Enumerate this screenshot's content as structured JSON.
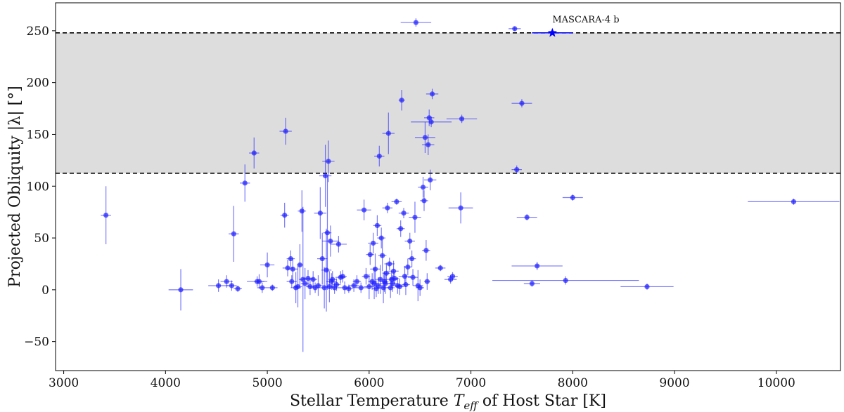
{
  "chart_data": {
    "type": "scatter",
    "xlabel_parts": [
      "Stellar Temperature ",
      "T",
      "eff",
      " of Host Star [K]"
    ],
    "ylabel": "Projected Obliquity |λ| [°]",
    "xlim": [
      2920,
      10630
    ],
    "ylim": [
      -78,
      277
    ],
    "xticks": [
      3000,
      4000,
      5000,
      6000,
      7000,
      8000,
      9000,
      10000
    ],
    "yticks": [
      -50,
      0,
      50,
      100,
      150,
      200,
      250
    ],
    "ytick_labels": [
      "−50",
      "0",
      "50",
      "100",
      "150",
      "200",
      "250"
    ],
    "shaded_band": [
      112.5,
      248
    ],
    "reference_lines": [
      112.5,
      248
    ],
    "colors": {
      "points": "#1f1fff",
      "band": "#dddddd",
      "star": "#0000ff",
      "lines": "#000000"
    },
    "highlight": {
      "label": "MASCARA-4 b",
      "x": 7800,
      "y": 248,
      "xerr": 200,
      "marker": "star"
    },
    "points": [
      [
        3415,
        72,
        50,
        28
      ],
      [
        4150,
        0,
        120,
        20
      ],
      [
        4520,
        4,
        100,
        6
      ],
      [
        4600,
        8,
        60,
        6
      ],
      [
        4650,
        4,
        50,
        5
      ],
      [
        4670,
        54,
        50,
        27
      ],
      [
        4710,
        1,
        40,
        3
      ],
      [
        4780,
        103,
        50,
        18
      ],
      [
        4870,
        132,
        50,
        15
      ],
      [
        4900,
        8,
        100,
        5
      ],
      [
        4920,
        8,
        50,
        7
      ],
      [
        4950,
        2,
        50,
        5
      ],
      [
        5000,
        24,
        70,
        12
      ],
      [
        5050,
        2,
        50,
        3
      ],
      [
        5170,
        72,
        40,
        12
      ],
      [
        5180,
        153,
        60,
        13
      ],
      [
        5200,
        21,
        50,
        8
      ],
      [
        5230,
        30,
        40,
        8
      ],
      [
        5240,
        8,
        50,
        6
      ],
      [
        5250,
        20,
        50,
        10
      ],
      [
        5280,
        2,
        50,
        15
      ],
      [
        5300,
        3,
        40,
        20
      ],
      [
        5320,
        24,
        30,
        20
      ],
      [
        5340,
        76,
        40,
        20
      ],
      [
        5350,
        10,
        40,
        70
      ],
      [
        5370,
        6,
        40,
        15
      ],
      [
        5400,
        11,
        50,
        8
      ],
      [
        5420,
        3,
        40,
        8
      ],
      [
        5450,
        10,
        40,
        8
      ],
      [
        5470,
        2,
        50,
        5
      ],
      [
        5500,
        4,
        50,
        10
      ],
      [
        5520,
        74,
        60,
        25
      ],
      [
        5540,
        30,
        50,
        25
      ],
      [
        5560,
        2,
        40,
        20
      ],
      [
        5570,
        110,
        60,
        30
      ],
      [
        5580,
        19,
        50,
        40
      ],
      [
        5590,
        55,
        40,
        55
      ],
      [
        5600,
        124,
        60,
        20
      ],
      [
        5610,
        3,
        40,
        15
      ],
      [
        5620,
        47,
        80,
        15
      ],
      [
        5630,
        8,
        50,
        8
      ],
      [
        5640,
        10,
        40,
        8
      ],
      [
        5660,
        2,
        50,
        6
      ],
      [
        5680,
        5,
        40,
        6
      ],
      [
        5700,
        44,
        80,
        8
      ],
      [
        5720,
        12,
        50,
        6
      ],
      [
        5740,
        13,
        40,
        6
      ],
      [
        5760,
        2,
        50,
        6
      ],
      [
        5800,
        1,
        40,
        4
      ],
      [
        5850,
        4,
        50,
        6
      ],
      [
        5880,
        8,
        40,
        6
      ],
      [
        5920,
        2,
        60,
        5
      ],
      [
        5950,
        77,
        70,
        10
      ],
      [
        5970,
        13,
        40,
        8
      ],
      [
        6000,
        3,
        50,
        12
      ],
      [
        6010,
        34,
        40,
        10
      ],
      [
        6030,
        8,
        40,
        8
      ],
      [
        6040,
        45,
        50,
        10
      ],
      [
        6050,
        6,
        40,
        15
      ],
      [
        6060,
        20,
        50,
        15
      ],
      [
        6070,
        1,
        40,
        8
      ],
      [
        6080,
        62,
        40,
        10
      ],
      [
        6090,
        4,
        40,
        8
      ],
      [
        6100,
        129,
        50,
        10
      ],
      [
        6110,
        10,
        50,
        14
      ],
      [
        6120,
        50,
        40,
        10
      ],
      [
        6130,
        33,
        40,
        15
      ],
      [
        6140,
        2,
        60,
        15
      ],
      [
        6150,
        8,
        40,
        10
      ],
      [
        6160,
        6,
        50,
        10
      ],
      [
        6170,
        16,
        40,
        10
      ],
      [
        6180,
        79,
        50,
        5
      ],
      [
        6190,
        151,
        60,
        20
      ],
      [
        6200,
        25,
        50,
        6
      ],
      [
        6210,
        2,
        40,
        10
      ],
      [
        6220,
        10,
        60,
        8
      ],
      [
        6230,
        6,
        40,
        8
      ],
      [
        6240,
        18,
        50,
        10
      ],
      [
        6250,
        11,
        40,
        6
      ],
      [
        6270,
        85,
        50,
        3
      ],
      [
        6280,
        4,
        50,
        8
      ],
      [
        6300,
        3,
        40,
        8
      ],
      [
        6310,
        59,
        40,
        8
      ],
      [
        6320,
        183,
        30,
        10
      ],
      [
        6340,
        74,
        50,
        5
      ],
      [
        6350,
        13,
        60,
        10
      ],
      [
        6360,
        5,
        40,
        10
      ],
      [
        6380,
        22,
        40,
        8
      ],
      [
        6400,
        47,
        50,
        8
      ],
      [
        6420,
        30,
        40,
        8
      ],
      [
        6430,
        12,
        50,
        8
      ],
      [
        6450,
        70,
        60,
        15
      ],
      [
        6460,
        258,
        150,
        4
      ],
      [
        6480,
        4,
        50,
        15
      ],
      [
        6500,
        2,
        40,
        8
      ],
      [
        6530,
        99,
        50,
        10
      ],
      [
        6540,
        86,
        40,
        10
      ],
      [
        6550,
        147,
        100,
        15
      ],
      [
        6560,
        38,
        40,
        10
      ],
      [
        6570,
        8,
        30,
        8
      ],
      [
        6580,
        140,
        60,
        10
      ],
      [
        6590,
        166,
        50,
        8
      ],
      [
        6600,
        106,
        60,
        10
      ],
      [
        6610,
        162,
        200,
        5
      ],
      [
        6620,
        189,
        60,
        5
      ],
      [
        6700,
        21,
        50,
        3
      ],
      [
        6800,
        10,
        60,
        4
      ],
      [
        6820,
        13,
        50,
        4
      ],
      [
        6900,
        79,
        120,
        15
      ],
      [
        6910,
        165,
        150,
        4
      ],
      [
        7430,
        252,
        60,
        2
      ],
      [
        7450,
        116,
        50,
        4
      ],
      [
        7500,
        180,
        100,
        4
      ],
      [
        7550,
        70,
        100,
        3
      ],
      [
        7600,
        6,
        80,
        3
      ],
      [
        7650,
        23,
        250,
        4
      ],
      [
        7930,
        9,
        720,
        4
      ],
      [
        8000,
        89,
        100,
        3
      ],
      [
        8730,
        3,
        260,
        3
      ],
      [
        10170,
        85,
        450,
        3
      ]
    ]
  }
}
